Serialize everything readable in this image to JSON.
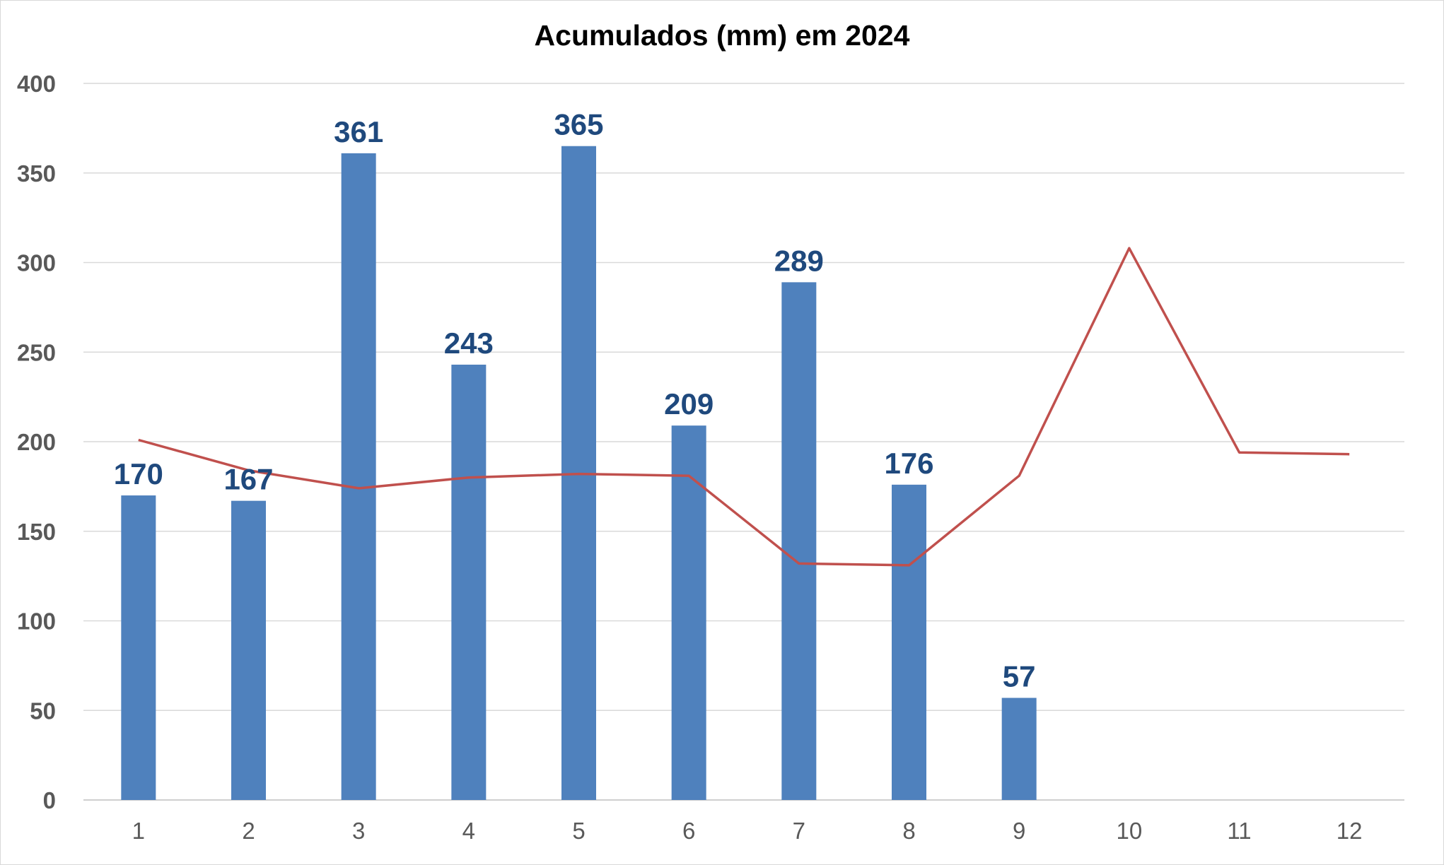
{
  "chart_data": {
    "type": "bar",
    "title": "Acumulados (mm) em 2024",
    "xlabel": "",
    "ylabel": "",
    "categories": [
      "1",
      "2",
      "3",
      "4",
      "5",
      "6",
      "7",
      "8",
      "9",
      "10",
      "11",
      "12"
    ],
    "ylim": [
      0,
      400
    ],
    "yticks": [
      0,
      50,
      100,
      150,
      200,
      250,
      300,
      350,
      400
    ],
    "grid": true,
    "legend": "none",
    "series": [
      {
        "type": "bar",
        "color": "#4f81bd",
        "values": [
          170,
          167,
          361,
          243,
          365,
          209,
          289,
          176,
          57,
          null,
          null,
          null
        ],
        "data_labels": [
          "170",
          "167",
          "361",
          "243",
          "365",
          "209",
          "289",
          "176",
          "57",
          "",
          "",
          ""
        ]
      },
      {
        "type": "line",
        "color": "#c0504d",
        "values": [
          201,
          184,
          174,
          180,
          182,
          181,
          132,
          131,
          181,
          308,
          194,
          193
        ]
      }
    ]
  }
}
